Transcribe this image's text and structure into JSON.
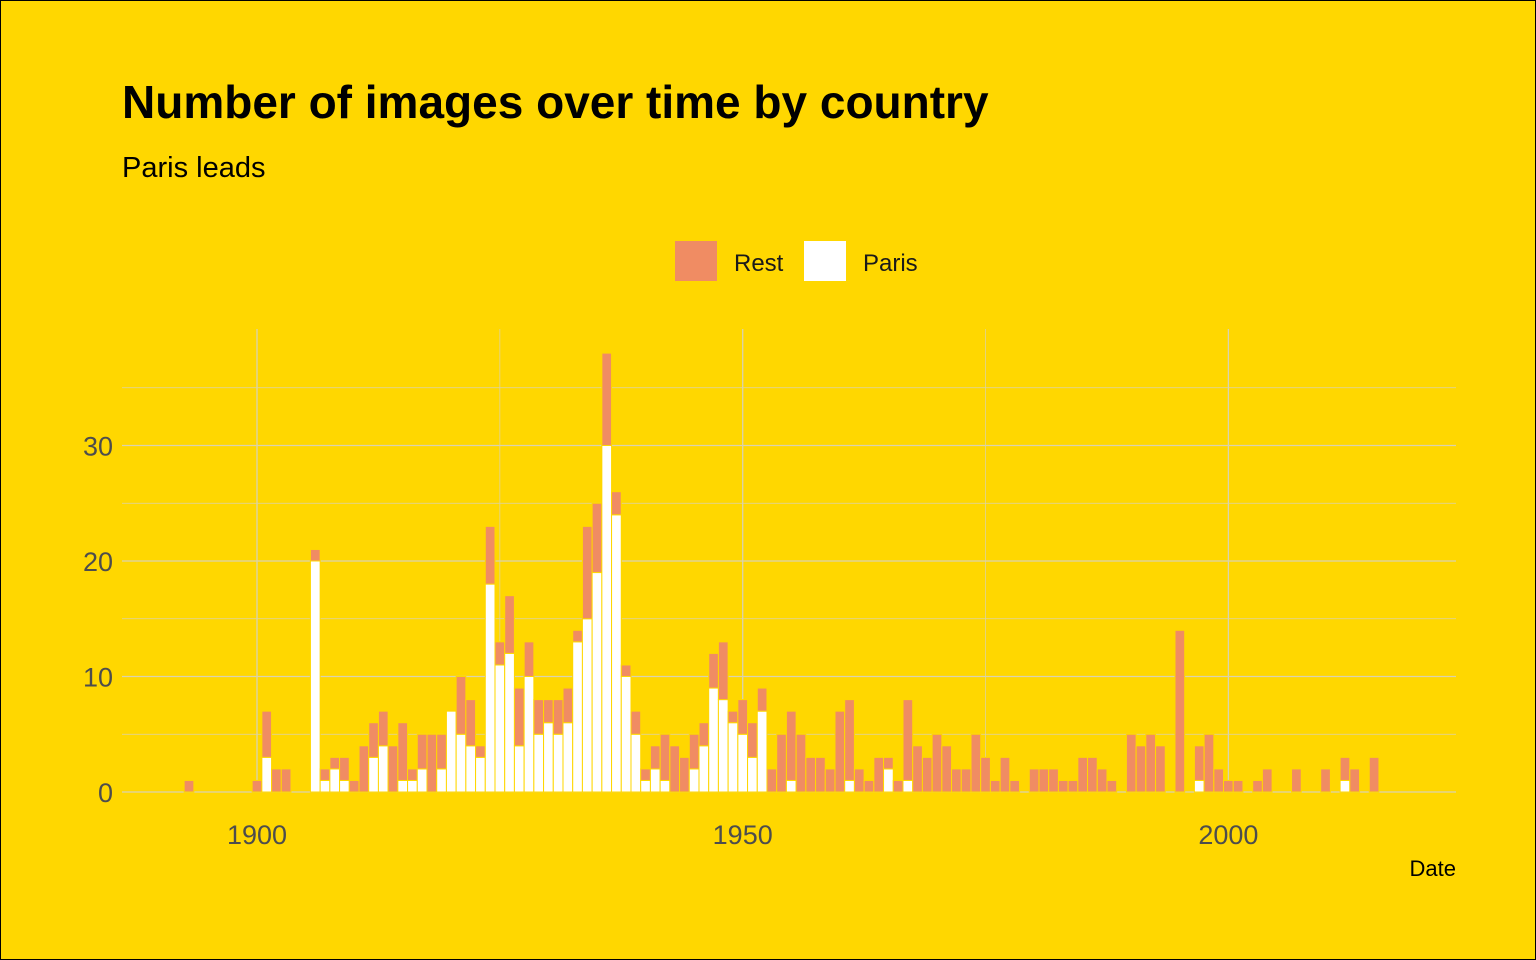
{
  "chart_data": {
    "type": "bar",
    "stacked": true,
    "title": "Number of images over time by country",
    "subtitle": "Paris leads",
    "xlabel": "Date",
    "ylabel": "",
    "xlim": [
      1886.5,
      2023.5
    ],
    "ylim": [
      -0.5,
      38
    ],
    "x_ticks": [
      1900,
      1950,
      2000
    ],
    "y_ticks": [
      0,
      10,
      20,
      30
    ],
    "grid": true,
    "legend": {
      "position": "top",
      "entries": [
        "Rest",
        "Paris"
      ]
    },
    "colors": {
      "background": "#FFD700",
      "Rest": "#F08C63",
      "Paris": "#FFFFFF",
      "bar_outline": "#FFD700"
    },
    "x": [
      1893,
      1900,
      1901,
      1902,
      1903,
      1906,
      1907,
      1908,
      1909,
      1910,
      1911,
      1912,
      1913,
      1914,
      1915,
      1916,
      1917,
      1918,
      1919,
      1920,
      1921,
      1922,
      1923,
      1924,
      1925,
      1926,
      1927,
      1928,
      1929,
      1930,
      1931,
      1932,
      1933,
      1934,
      1935,
      1936,
      1937,
      1938,
      1939,
      1940,
      1941,
      1942,
      1943,
      1944,
      1945,
      1946,
      1947,
      1948,
      1949,
      1950,
      1951,
      1952,
      1953,
      1954,
      1955,
      1956,
      1957,
      1958,
      1959,
      1960,
      1961,
      1962,
      1963,
      1964,
      1965,
      1966,
      1967,
      1968,
      1969,
      1970,
      1971,
      1972,
      1973,
      1974,
      1975,
      1976,
      1977,
      1978,
      1980,
      1981,
      1982,
      1983,
      1984,
      1985,
      1986,
      1987,
      1988,
      1990,
      1991,
      1992,
      1993,
      1995,
      1997,
      1998,
      1999,
      2000,
      2001,
      2003,
      2004,
      2007,
      2010,
      2012,
      2013,
      2015,
      2017
    ],
    "series": [
      {
        "name": "Paris",
        "values": [
          0,
          0,
          3,
          0,
          0,
          20,
          1,
          2,
          1,
          0,
          0,
          3,
          4,
          0,
          1,
          1,
          2,
          0,
          2,
          7,
          5,
          4,
          3,
          18,
          11,
          12,
          4,
          10,
          5,
          6,
          5,
          6,
          13,
          15,
          19,
          30,
          24,
          10,
          5,
          1,
          2,
          1,
          0,
          0,
          2,
          4,
          9,
          8,
          6,
          5,
          3,
          7,
          0,
          0,
          1,
          0,
          0,
          0,
          0,
          0,
          1,
          0,
          0,
          0,
          2,
          0,
          1,
          0,
          0,
          0,
          0,
          0,
          0,
          0,
          0,
          0,
          0,
          0,
          0,
          0,
          0,
          0,
          0,
          0,
          0,
          0,
          0,
          0,
          0,
          0,
          0,
          0,
          1,
          0,
          0,
          0,
          0,
          0,
          0,
          0,
          0,
          1,
          0,
          0,
          0
        ]
      },
      {
        "name": "Rest",
        "values": [
          1,
          1,
          4,
          2,
          2,
          1,
          1,
          1,
          2,
          1,
          4,
          3,
          3,
          4,
          5,
          1,
          3,
          5,
          3,
          0,
          5,
          4,
          1,
          5,
          2,
          5,
          5,
          3,
          3,
          2,
          3,
          3,
          1,
          8,
          6,
          8,
          2,
          1,
          2,
          1,
          2,
          4,
          4,
          3,
          3,
          2,
          3,
          5,
          1,
          3,
          3,
          2,
          2,
          5,
          6,
          5,
          3,
          3,
          2,
          7,
          7,
          2,
          1,
          3,
          1,
          1,
          7,
          4,
          3,
          5,
          4,
          2,
          2,
          5,
          3,
          1,
          3,
          1,
          2,
          2,
          2,
          1,
          1,
          3,
          3,
          2,
          1,
          5,
          4,
          5,
          4,
          14,
          3,
          5,
          2,
          1,
          1,
          1,
          2,
          2,
          2,
          2,
          2,
          3,
          0
        ]
      }
    ]
  }
}
